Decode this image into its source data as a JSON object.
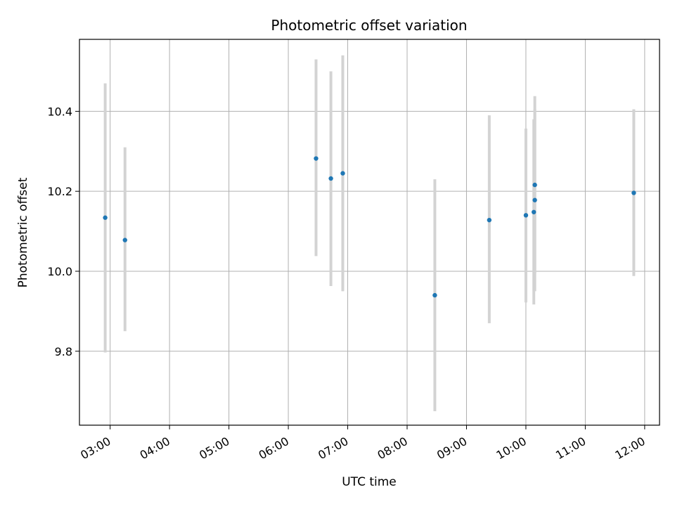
{
  "chart_data": {
    "type": "scatter",
    "title": "Photometric offset variation",
    "xlabel": "UTC time",
    "ylabel": "Photometric offset",
    "grid": true,
    "x_axis": {
      "type": "time",
      "range": [
        "02:29",
        "12:15"
      ],
      "tick_labels": [
        "03:00",
        "04:00",
        "05:00",
        "06:00",
        "07:00",
        "08:00",
        "09:00",
        "10:00",
        "11:00",
        "12:00"
      ]
    },
    "y_axis": {
      "range": [
        9.615,
        10.58
      ],
      "ticks": [
        9.8,
        10.0,
        10.2,
        10.4
      ],
      "tick_labels": [
        "9.8",
        "10.0",
        "10.2",
        "10.4"
      ]
    },
    "colors": {
      "point": "#1f77b4",
      "errorbar": "#d3d3d3",
      "grid": "#b0b0b0"
    },
    "points": [
      {
        "x": "02:55",
        "y": 10.134,
        "lo": 9.797,
        "hi": 10.47
      },
      {
        "x": "03:15",
        "y": 10.078,
        "lo": 9.85,
        "hi": 10.31
      },
      {
        "x": "06:28",
        "y": 10.282,
        "lo": 10.038,
        "hi": 10.53
      },
      {
        "x": "06:43",
        "y": 10.232,
        "lo": 9.963,
        "hi": 10.5
      },
      {
        "x": "06:55",
        "y": 10.245,
        "lo": 9.95,
        "hi": 10.54
      },
      {
        "x": "08:28",
        "y": 9.94,
        "lo": 9.65,
        "hi": 10.23
      },
      {
        "x": "09:23",
        "y": 10.128,
        "lo": 9.87,
        "hi": 10.39
      },
      {
        "x": "10:00",
        "y": 10.14,
        "lo": 9.922,
        "hi": 10.357
      },
      {
        "x": "10:08",
        "y": 10.148,
        "lo": 9.917,
        "hi": 10.38
      },
      {
        "x": "10:09",
        "y": 10.178,
        "lo": 9.95,
        "hi": 10.405
      },
      {
        "x": "10:09",
        "y": 10.216,
        "lo": 9.995,
        "hi": 10.438
      },
      {
        "x": "11:49",
        "y": 10.196,
        "lo": 9.988,
        "hi": 10.405
      }
    ]
  }
}
